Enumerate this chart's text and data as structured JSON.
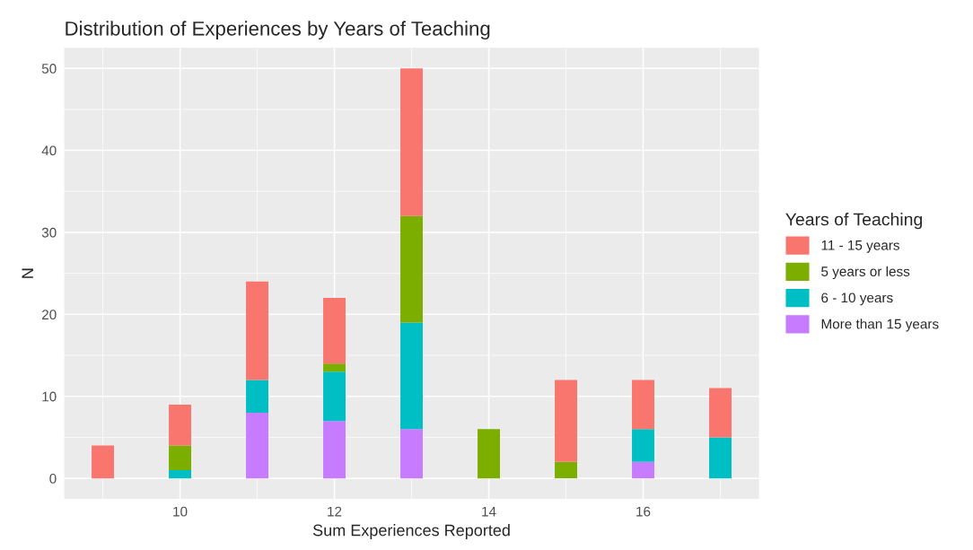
{
  "chart_data": {
    "type": "bar",
    "title": "Distribution of Experiences by Years of Teaching",
    "xlabel": "Sum Experiences Reported",
    "ylabel": "N",
    "legend_title": "Years of Teaching",
    "x": [
      9,
      10,
      11,
      12,
      13,
      14,
      15,
      16,
      17
    ],
    "stacked": true,
    "series": [
      {
        "name": "More than 15 years",
        "color": "#c77cff",
        "values": [
          null,
          null,
          8,
          7,
          6,
          null,
          null,
          2,
          null
        ]
      },
      {
        "name": "6 - 10 years",
        "color": "#00bfc4",
        "values": [
          null,
          1,
          4,
          6,
          13,
          null,
          null,
          4,
          5
        ]
      },
      {
        "name": "5 years or less",
        "color": "#7cae00",
        "values": [
          null,
          3,
          null,
          1,
          13,
          6,
          2,
          null,
          null
        ]
      },
      {
        "name": "11 - 15 years",
        "color": "#f8766d",
        "values": [
          4,
          5,
          12,
          8,
          18,
          null,
          10,
          6,
          6
        ]
      }
    ],
    "xlim": [
      8.5,
      17.5
    ],
    "xticks": [
      10,
      12,
      14,
      16
    ],
    "ylim": [
      -2.5,
      52.5
    ],
    "yticks": [
      0,
      10,
      20,
      30,
      40,
      50
    ],
    "grid": true,
    "legend": "right"
  }
}
